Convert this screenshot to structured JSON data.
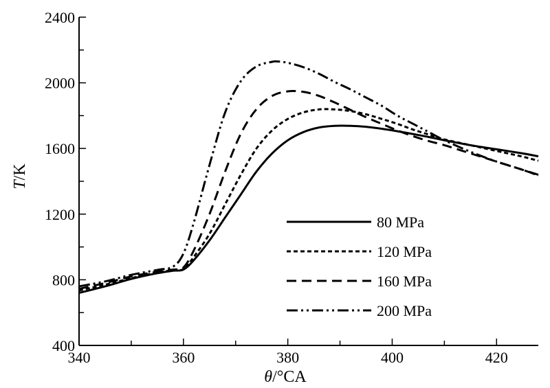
{
  "chart_data": {
    "type": "line",
    "title": "",
    "xlabel_italic": "θ",
    "xlabel_rest": "/°CA",
    "ylabel_italic": "T",
    "ylabel_rest": "/K",
    "xlim": [
      340,
      428
    ],
    "ylim": [
      400,
      2400
    ],
    "xticks": [
      340,
      360,
      380,
      400,
      420
    ],
    "yticks": [
      400,
      800,
      1200,
      1600,
      2000,
      2400
    ],
    "grid": false,
    "legend_position": "center-right",
    "series": [
      {
        "name": "80 MPa",
        "dash": "solid",
        "x": [
          340,
          345,
          350,
          355,
          358,
          360,
          362,
          365,
          368,
          371,
          374,
          377,
          380,
          383,
          386,
          389,
          392,
          395,
          398,
          401,
          404,
          407,
          410,
          415,
          420,
          425,
          428
        ],
        "y": [
          720,
          760,
          805,
          840,
          855,
          862,
          920,
          1040,
          1180,
          1320,
          1460,
          1570,
          1650,
          1700,
          1728,
          1738,
          1738,
          1732,
          1720,
          1705,
          1688,
          1670,
          1650,
          1620,
          1595,
          1570,
          1552
        ]
      },
      {
        "name": "120 MPa",
        "dash": "short-dash",
        "x": [
          340,
          345,
          350,
          355,
          358,
          360,
          362,
          365,
          368,
          371,
          374,
          377,
          380,
          383,
          386,
          389,
          392,
          395,
          398,
          401,
          404,
          407,
          410,
          415,
          420,
          425,
          428
        ],
        "y": [
          735,
          770,
          810,
          845,
          858,
          865,
          940,
          1080,
          1260,
          1440,
          1600,
          1710,
          1780,
          1820,
          1838,
          1838,
          1828,
          1808,
          1780,
          1750,
          1715,
          1685,
          1655,
          1620,
          1585,
          1550,
          1525
        ]
      },
      {
        "name": "160 MPa",
        "dash": "long-dash",
        "x": [
          340,
          345,
          350,
          355,
          358,
          360,
          362,
          365,
          368,
          371,
          374,
          377,
          380,
          383,
          386,
          389,
          392,
          395,
          398,
          401,
          404,
          407,
          410,
          415,
          420,
          425,
          428
        ],
        "y": [
          745,
          780,
          820,
          850,
          862,
          875,
          980,
          1200,
          1460,
          1690,
          1840,
          1920,
          1948,
          1945,
          1920,
          1880,
          1835,
          1790,
          1750,
          1710,
          1675,
          1645,
          1620,
          1570,
          1520,
          1470,
          1440
        ]
      },
      {
        "name": "200 MPa",
        "dash": "dash-dot-dot",
        "x": [
          340,
          345,
          350,
          355,
          358,
          360,
          362,
          365,
          368,
          371,
          374,
          377,
          378,
          380,
          383,
          386,
          389,
          392,
          395,
          398,
          401,
          404,
          407,
          410,
          415,
          420,
          425,
          428
        ],
        "y": [
          760,
          790,
          830,
          860,
          880,
          960,
          1150,
          1500,
          1820,
          2010,
          2100,
          2128,
          2130,
          2122,
          2095,
          2055,
          2005,
          1960,
          1910,
          1860,
          1800,
          1750,
          1700,
          1650,
          1580,
          1520,
          1470,
          1435
        ]
      }
    ]
  }
}
